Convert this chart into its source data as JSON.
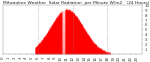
{
  "title": "Milwaukee Weather  Solar Radiation  per Minute W/m2   (24 Hours)",
  "background_color": "#ffffff",
  "fill_color": "#ff0000",
  "line_color": "#cc0000",
  "grid_color": "#888888",
  "num_minutes": 1440,
  "peak_minute": 660,
  "peak_value": 920,
  "sigma": 170,
  "sunrise_min": 330,
  "sunset_min": 1110,
  "ylim": [
    0,
    1000
  ],
  "ytick_values": [
    100,
    200,
    300,
    400,
    500,
    600,
    700,
    800,
    900,
    1000
  ],
  "ytick_labels": [
    "1",
    "2",
    "3",
    "4",
    "5",
    "6",
    "7",
    "8",
    "9",
    "10"
  ],
  "xtick_hours": [
    0,
    1,
    2,
    3,
    4,
    5,
    6,
    7,
    8,
    9,
    10,
    11,
    12,
    13,
    14,
    15,
    16,
    17,
    18,
    19,
    20,
    21,
    22,
    23
  ],
  "vgrid_hours": [
    6,
    12,
    18
  ],
  "spike_minutes": [
    615,
    625,
    635
  ],
  "title_fontsize": 3.2,
  "tick_fontsize": 2.8
}
